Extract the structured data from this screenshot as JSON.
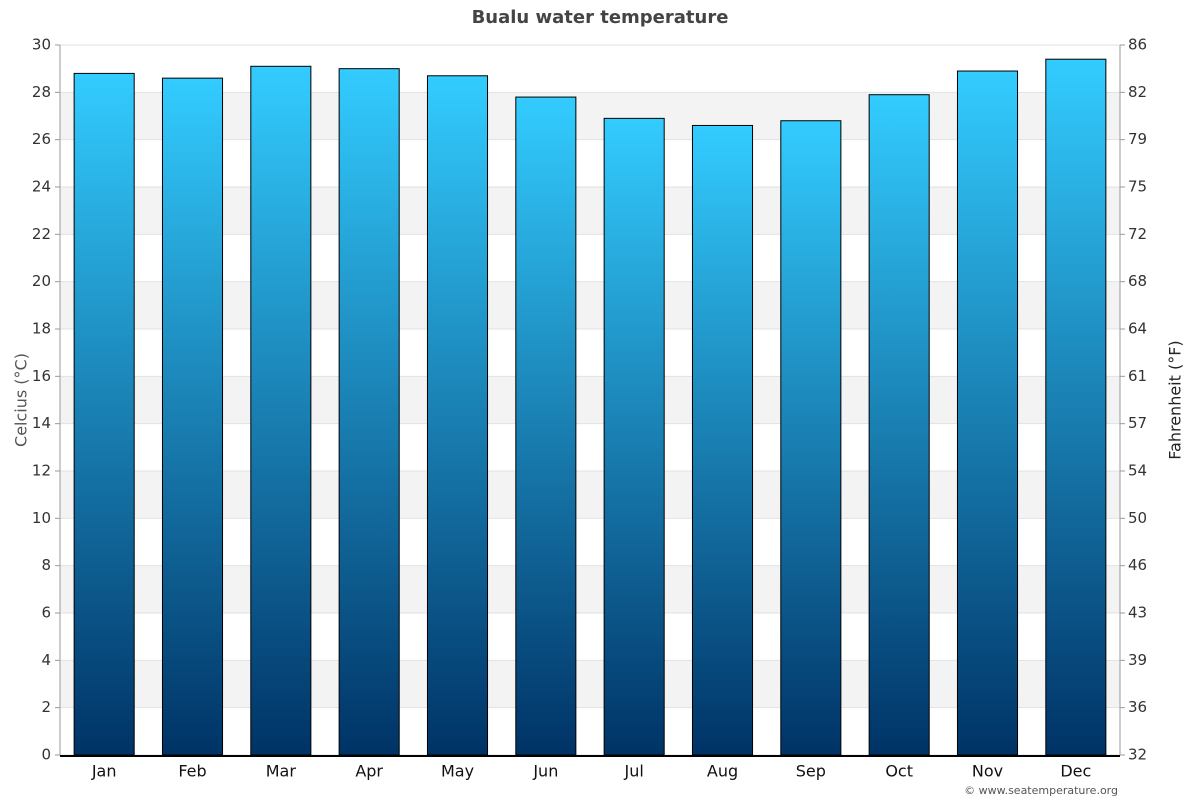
{
  "chart_data": {
    "type": "bar",
    "title": "Bualu water temperature",
    "categories": [
      "Jan",
      "Feb",
      "Mar",
      "Apr",
      "May",
      "Jun",
      "Jul",
      "Aug",
      "Sep",
      "Oct",
      "Nov",
      "Dec"
    ],
    "values": [
      28.8,
      28.6,
      29.1,
      29.0,
      28.7,
      27.8,
      26.9,
      26.6,
      26.8,
      27.9,
      28.9,
      29.4
    ],
    "gradient": [
      "#33ccff",
      "#003366"
    ],
    "ylabel": "Celcius (°C)",
    "y2label": "Fahrenheit (°F)",
    "ylim": [
      0,
      30
    ],
    "yticks": [
      0,
      2,
      4,
      6,
      8,
      10,
      12,
      14,
      16,
      18,
      20,
      22,
      24,
      26,
      28,
      30
    ],
    "y2lim": [
      32,
      86
    ],
    "y2ticks": [
      32,
      {
        "value": 35.6,
        "label": "36"
      },
      {
        "value": 39.2,
        "label": "39"
      },
      {
        "value": 42.8,
        "label": "43"
      },
      {
        "value": 46.4,
        "label": "46"
      },
      50,
      {
        "value": 53.6,
        "label": "54"
      },
      {
        "value": 57.2,
        "label": "57"
      },
      {
        "value": 60.8,
        "label": "61"
      },
      {
        "value": 64.4,
        "label": "64"
      },
      68,
      {
        "value": 71.6,
        "label": "72"
      },
      {
        "value": 75.2,
        "label": "75"
      },
      {
        "value": 78.8,
        "label": "79"
      },
      {
        "value": 82.4,
        "label": "82"
      },
      86
    ],
    "grid": true,
    "credit": "© www.seatemperature.org"
  }
}
